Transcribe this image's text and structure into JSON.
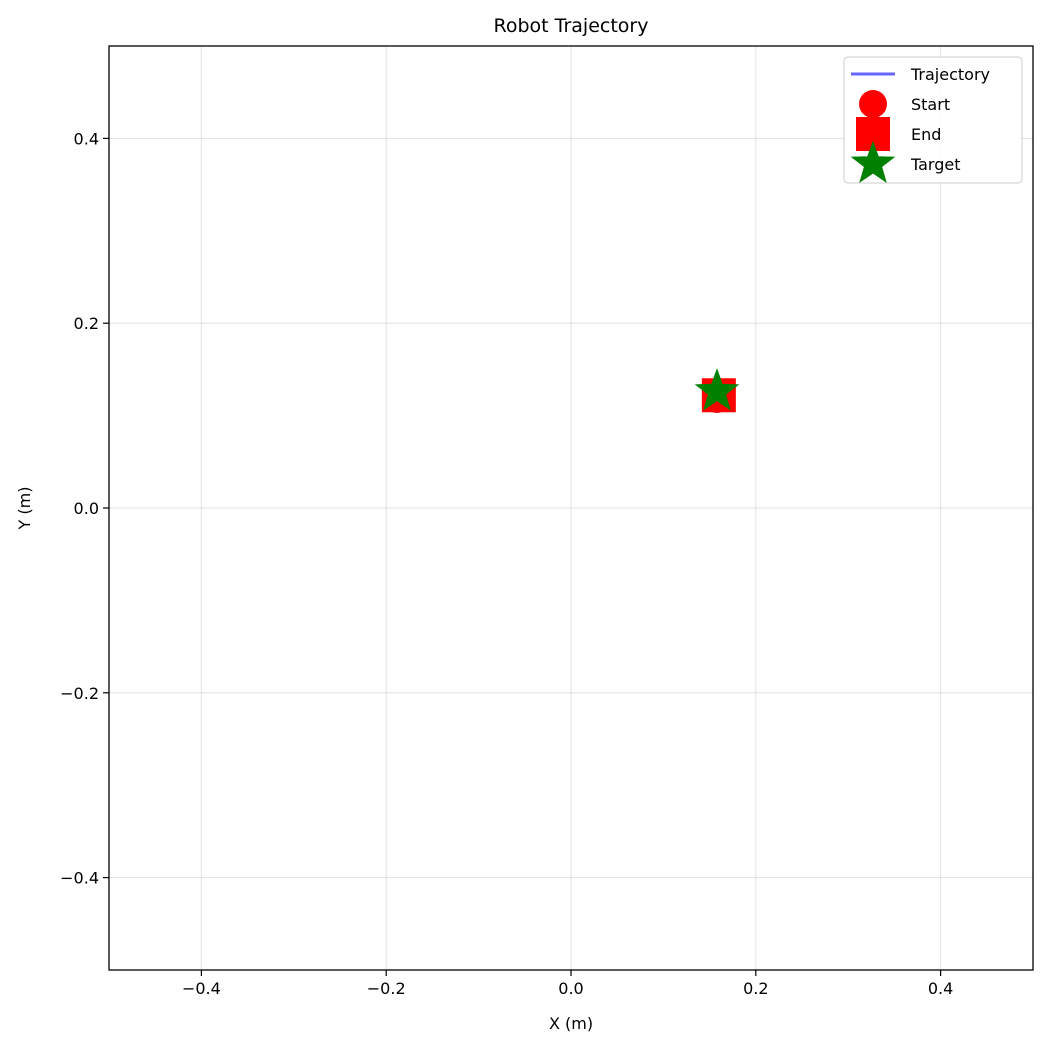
{
  "chart_data": {
    "type": "scatter",
    "title": "Robot Trajectory",
    "xlabel": "X (m)",
    "ylabel": "Y (m)",
    "xlim": [
      -0.5,
      0.5
    ],
    "ylim": [
      -0.5,
      0.5
    ],
    "xticks": [
      -0.4,
      -0.2,
      0.0,
      0.2,
      0.4
    ],
    "xtick_labels": [
      "−0.4",
      "−0.2",
      "0.0",
      "0.2",
      "0.4"
    ],
    "yticks": [
      -0.4,
      -0.2,
      0.0,
      0.2,
      0.4
    ],
    "ytick_labels": [
      "−0.4",
      "−0.2",
      "0.0",
      "0.2",
      "0.4"
    ],
    "grid": true,
    "legend_position": "top-right",
    "series": [
      {
        "name": "Trajectory",
        "marker": "line",
        "color": "#6666ff",
        "points": [
          [
            0.158,
            0.12
          ],
          [
            0.16,
            0.122
          ]
        ]
      },
      {
        "name": "Start",
        "marker": "circle",
        "color": "#ff0000",
        "points": [
          [
            0.158,
            0.118
          ]
        ]
      },
      {
        "name": "End",
        "marker": "square",
        "color": "#ff0000",
        "points": [
          [
            0.16,
            0.122
          ]
        ]
      },
      {
        "name": "Target",
        "marker": "star",
        "color": "#008000",
        "points": [
          [
            0.158,
            0.126
          ]
        ]
      }
    ]
  }
}
